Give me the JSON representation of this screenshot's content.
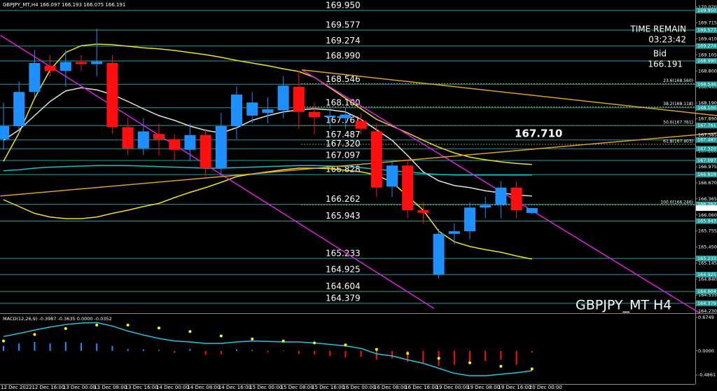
{
  "chart_data": {
    "type": "candlestick",
    "title": "GBPJPY_MT,H4 166.097 166.193 166.075 166.191",
    "watermark": "GBPJPY_MT H4",
    "time_remain_label": "TIME REMAIN",
    "time_remain": "03:23:42",
    "bid_label": "Bid",
    "bid": 166.191,
    "marker": "167.710",
    "up_color": "#1e90ff",
    "down_color": "#ff1010",
    "categories": [
      "12 Dec 2022",
      null,
      "12 Dec 16:00",
      null,
      "13 Dec 00:00",
      null,
      "13 Dec 08:00",
      null,
      "13 Dec 16:00",
      null,
      "14 Dec 00:00",
      null,
      "14 Dec 08:00",
      null,
      "14 Dec 16:00",
      null,
      "15 Dec 00:00",
      null,
      "15 Dec 08:00",
      null,
      "15 Dec 16:00",
      null,
      "16 Dec 00:00",
      null,
      "16 Dec 08:00",
      null,
      "16 Dec 16:00",
      null,
      "19 Dec 00:00",
      null,
      "19 Dec 08:00",
      null,
      "19 Dec 16:00",
      null,
      "20 Dec 00:00"
    ],
    "open": [
      167.5,
      167.75,
      168.4,
      168.9,
      168.8,
      168.97,
      168.93,
      168.95,
      167.73,
      167.33,
      167.6,
      167.5,
      167.3,
      167.58,
      166.95,
      167.75,
      167.95,
      168.0,
      168.05,
      168.5,
      168.02,
      167.92,
      167.9,
      167.85,
      167.65,
      166.6,
      167.0,
      166.15,
      164.93,
      165.7,
      165.75,
      166.2,
      166.25,
      166.58,
      166.097
    ],
    "high": [
      168.2,
      168.6,
      169.2,
      169.1,
      169.2,
      169.1,
      169.6,
      169.1,
      167.9,
      167.9,
      167.8,
      167.6,
      167.8,
      167.7,
      168.0,
      168.5,
      168.4,
      168.3,
      168.7,
      168.8,
      168.2,
      168.1,
      168.1,
      168.0,
      167.8,
      167.1,
      167.1,
      166.3,
      165.8,
      165.9,
      166.3,
      166.4,
      166.7,
      166.7,
      166.193
    ],
    "low": [
      167.3,
      167.6,
      168.3,
      168.7,
      168.5,
      168.8,
      168.7,
      167.6,
      167.2,
      167.2,
      167.2,
      167.1,
      167.1,
      166.8,
      166.8,
      167.5,
      167.8,
      167.8,
      167.9,
      167.7,
      167.6,
      167.7,
      167.7,
      167.6,
      166.4,
      166.4,
      166.0,
      165.9,
      164.85,
      165.5,
      165.6,
      166.0,
      166.0,
      166.0,
      166.075
    ],
    "close": [
      167.75,
      168.4,
      168.95,
      168.8,
      168.97,
      168.93,
      168.98,
      167.73,
      167.33,
      167.65,
      167.5,
      167.3,
      167.58,
      166.95,
      167.75,
      168.35,
      168.2,
      168.07,
      168.52,
      168.02,
      167.92,
      167.95,
      167.97,
      167.7,
      166.58,
      167.0,
      166.15,
      166.1,
      165.7,
      165.75,
      166.2,
      166.25,
      166.58,
      166.15,
      166.191
    ],
    "ylim": [
      164.19,
      170.15
    ],
    "yticks": [
      {
        "value": 170.02,
        "label": "170.020"
      },
      {
        "value": 169.715,
        "label": "169.715"
      },
      {
        "value": 169.41,
        "label": "169.410"
      },
      {
        "value": 169.105,
        "label": "169.105"
      },
      {
        "value": 168.8,
        "label": "168.800"
      },
      {
        "value": 168.495,
        "label": "168.495"
      },
      {
        "value": 168.19,
        "label": "168.190"
      },
      {
        "value": 167.89,
        "label": "167.890"
      },
      {
        "value": 167.585,
        "label": "167.585"
      },
      {
        "value": 167.28,
        "label": "167.280"
      },
      {
        "value": 166.975,
        "label": "166.975"
      },
      {
        "value": 166.67,
        "label": "166.670"
      },
      {
        "value": 166.365,
        "label": "166.365"
      },
      {
        "value": 166.06,
        "label": "166.060"
      },
      {
        "value": 165.755,
        "label": "165.755"
      },
      {
        "value": 165.45,
        "label": "165.450"
      },
      {
        "value": 165.145,
        "label": "165.145"
      },
      {
        "value": 164.84,
        "label": "164.840"
      },
      {
        "value": 164.535,
        "label": "164.535"
      },
      {
        "value": 164.23,
        "label": "164.230"
      }
    ],
    "level_color": "#239e9e",
    "levels": [
      {
        "value": 169.95,
        "label": "169.950"
      },
      {
        "value": 169.577,
        "label": "169.577"
      },
      {
        "value": 169.274,
        "label": "169.274"
      },
      {
        "value": 168.99,
        "label": "168.990"
      },
      {
        "value": 168.546,
        "label": "168.546"
      },
      {
        "value": 168.1,
        "label": "168.100"
      },
      {
        "value": 167.761,
        "label": "167.761"
      },
      {
        "value": 167.487,
        "label": "167.487"
      },
      {
        "value": 167.32,
        "label": "167.320"
      },
      {
        "value": 167.097,
        "label": "167.097"
      },
      {
        "value": 166.828,
        "label": "166.828"
      },
      {
        "value": 166.262,
        "label": "166.262"
      },
      {
        "value": 165.943,
        "label": "165.943"
      },
      {
        "value": 165.233,
        "label": "165.233"
      },
      {
        "value": 164.925,
        "label": "164.925"
      },
      {
        "value": 164.604,
        "label": "164.604"
      },
      {
        "value": 164.379,
        "label": "164.379"
      }
    ],
    "fib_color": "#c8c832",
    "fib": [
      {
        "value": 168.56,
        "label": "23.6(168.560)"
      },
      {
        "value": 168.118,
        "label": "38.2(168.118)"
      },
      {
        "value": 167.761,
        "label": "50.0(167.761)"
      },
      {
        "value": 167.403,
        "label": "61.8(167.403)"
      },
      {
        "value": 166.246,
        "label": "100.0(166.246)"
      }
    ],
    "overlays": [
      {
        "color": "#f0e020",
        "values": [
          167.08,
          167.62,
          168.28,
          168.82,
          169.15,
          169.28,
          169.31,
          169.3,
          169.27,
          169.24,
          169.22,
          169.19,
          169.15,
          169.11,
          169.06,
          169.0,
          168.95,
          168.9,
          168.84,
          168.79,
          168.68,
          168.48,
          168.28,
          168.08,
          167.88,
          167.75,
          167.62,
          167.48,
          167.35,
          167.24,
          167.16,
          167.11,
          167.07,
          167.04,
          167.02
        ]
      },
      {
        "color": "#f0e020",
        "values": [
          166.35,
          166.22,
          166.09,
          166.02,
          165.99,
          165.99,
          166.02,
          166.09,
          166.15,
          166.22,
          166.28,
          166.39,
          166.49,
          166.58,
          166.68,
          166.79,
          166.84,
          166.88,
          166.92,
          166.95,
          166.95,
          166.94,
          166.91,
          166.88,
          166.82,
          166.68,
          166.42,
          166.15,
          165.75,
          165.55,
          165.46,
          165.4,
          165.35,
          165.28,
          165.22
        ]
      },
      {
        "color": "#e8e0d8",
        "values": [
          167.48,
          167.68,
          167.95,
          168.22,
          168.42,
          168.48,
          168.44,
          168.35,
          168.22,
          168.08,
          167.95,
          167.86,
          167.75,
          167.67,
          167.62,
          167.72,
          167.86,
          167.95,
          168.02,
          168.06,
          168.08,
          168.06,
          168.02,
          167.88,
          167.68,
          167.48,
          167.19,
          166.88,
          166.71,
          166.62,
          166.58,
          166.52,
          166.48,
          166.44,
          166.42
        ]
      },
      {
        "color": "#00c8d8",
        "values": [
          166.9,
          166.92,
          166.95,
          166.97,
          166.98,
          166.99,
          167.0,
          167.0,
          167.0,
          166.99,
          166.98,
          166.97,
          166.96,
          166.95,
          166.95,
          166.96,
          166.97,
          166.98,
          166.99,
          167.0,
          167.0,
          166.99,
          166.98,
          166.96,
          166.93,
          166.9,
          166.88,
          166.85,
          166.83,
          166.82,
          166.82,
          166.82,
          166.82,
          166.82,
          166.82
        ]
      }
    ],
    "trendlines": [
      {
        "color": "#e020e0",
        "x": [
          -0.2,
          27.7
        ],
        "y": [
          169.48,
          164.28
        ]
      },
      {
        "color": "#e020e0",
        "x": [
          19.2,
          44.8
        ],
        "y": [
          168.82,
          164.19
        ]
      },
      {
        "color": "#e0a020",
        "x": [
          19.2,
          45.9
        ],
        "y": [
          168.82,
          167.95
        ]
      },
      {
        "color": "#e0a020",
        "x": [
          -0.2,
          45.9
        ],
        "y": [
          166.42,
          167.62
        ]
      }
    ],
    "macd": {
      "label": "MACD(12,26,9) -0.3987 -0.3635 0.0000 -0.0352",
      "ylim": [
        -0.666,
        0.73
      ],
      "yticks": [
        0.6749,
        {
          "value": 0,
          "label": "0.0000"
        },
        -0.4861
      ],
      "histogram": {
        "up_color": "#1e90ff",
        "down_color": "#ff1010",
        "values": [
          0.1,
          0.15,
          0.18,
          0.15,
          0.18,
          0.16,
          0.15,
          0.1,
          0.04,
          0.03,
          0.02,
          -0.04,
          0.04,
          -0.08,
          -0.07,
          0.03,
          0.02,
          -0.03,
          0.01,
          -0.06,
          -0.07,
          -0.1,
          -0.13,
          -0.12,
          -0.18,
          -0.15,
          -0.22,
          -0.26,
          -0.3,
          -0.28,
          -0.25,
          -0.2,
          -0.18,
          -0.28,
          -0.0352
        ]
      },
      "dots": {
        "color": "#ffff00",
        "values": [
          0.2,
          0.27,
          0.33,
          0.4,
          0.45,
          0.49,
          0.52,
          0.53,
          0.52,
          0.5,
          0.46,
          0.43,
          0.39,
          0.35,
          0.3,
          0.27,
          0.24,
          0.22,
          0.2,
          0.18,
          0.16,
          0.14,
          0.12,
          0.08,
          0.03,
          0.0,
          -0.05,
          -0.1,
          -0.15,
          -0.2,
          -0.24,
          -0.28,
          -0.31,
          -0.34,
          -0.3635
        ]
      },
      "line": {
        "color": "#20c8e0",
        "values": [
          0.29,
          0.35,
          0.42,
          0.48,
          0.53,
          0.56,
          0.57,
          0.5,
          0.4,
          0.32,
          0.25,
          0.2,
          0.18,
          0.15,
          0.15,
          0.18,
          0.2,
          0.19,
          0.18,
          0.18,
          0.16,
          0.13,
          0.1,
          0.05,
          -0.06,
          -0.1,
          -0.18,
          -0.25,
          -0.35,
          -0.45,
          -0.5,
          -0.5,
          -0.47,
          -0.44,
          -0.3987
        ]
      }
    }
  }
}
